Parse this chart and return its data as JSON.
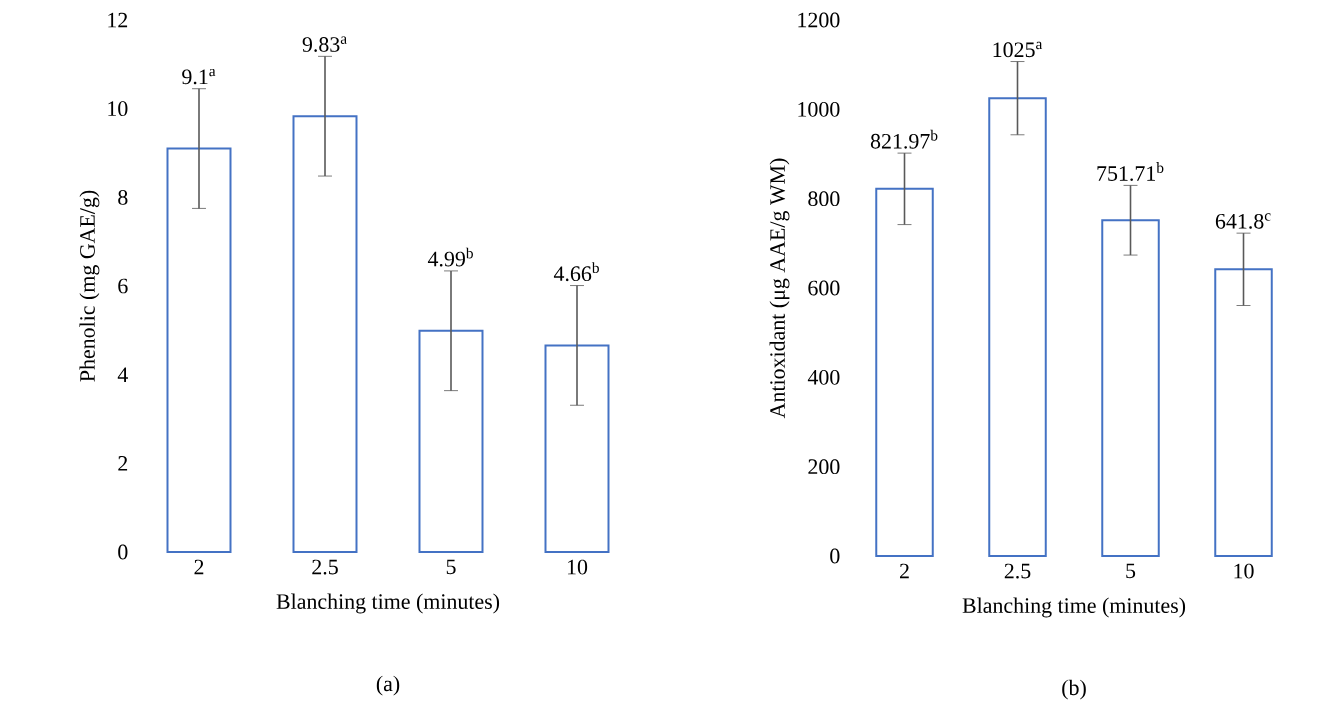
{
  "chart_data": [
    {
      "type": "bar",
      "categories": [
        "2",
        "2.5",
        "5",
        "10"
      ],
      "values": [
        9.1,
        9.83,
        4.99,
        4.66
      ],
      "color": "#4472c4",
      "errors": [
        1.35,
        1.35,
        1.35,
        1.35
      ],
      "value_labels": [
        "9.1$^{a}$",
        "9.83$^{a}$",
        "4.99$^{b}$",
        "4.66$^{b}$"
      ],
      "ylim": [
        0,
        12
      ],
      "yticks": [
        0,
        2,
        4,
        6,
        8,
        10,
        12
      ],
      "xlabel": "Blanching time (minutes)",
      "ylabel": "Phenolic (mg GAE/g)",
      "annotations": [
        "(a)"
      ]
    },
    {
      "type": "bar",
      "categories": [
        "2",
        "2.5",
        "5",
        "10"
      ],
      "values": [
        821.97,
        1025,
        751.71,
        641.8
      ],
      "color": "#4472c4",
      "errors": [
        80,
        82,
        78,
        81
      ],
      "value_labels": [
        "821.97$^{b}$",
        "1025$^{a}$",
        "751.71$^{b}$",
        "641.8$^{c}$"
      ],
      "ylim": [
        0,
        1200
      ],
      "yticks": [
        0,
        200,
        400,
        600,
        800,
        1000,
        1200
      ],
      "xlabel": "Blanching time (minutes)",
      "ylabel": "Antioxidant (μg AAE/g WM)",
      "annotations": [
        "(b)"
      ]
    }
  ]
}
